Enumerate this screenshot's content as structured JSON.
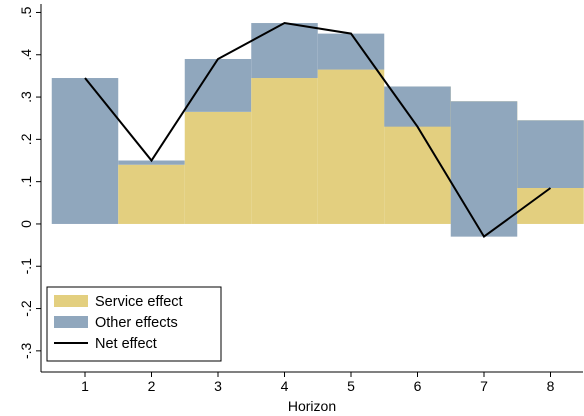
{
  "chart_data": {
    "type": "bar",
    "stacking": "stacked",
    "categories": [
      "1",
      "2",
      "3",
      "4",
      "5",
      "6",
      "7",
      "8"
    ],
    "x": [
      1,
      2,
      3,
      4,
      5,
      6,
      7,
      8
    ],
    "series": [
      {
        "name": "Service effect",
        "type": "bar",
        "color": "#e3cf7f",
        "values": [
          0.0,
          0.14,
          0.265,
          0.345,
          0.365,
          0.325,
          0.29,
          0.245
        ]
      },
      {
        "name": "Other effects",
        "type": "bar",
        "color": "#90a7bd",
        "values": [
          0.345,
          0.01,
          0.125,
          0.13,
          0.085,
          -0.095,
          -0.32,
          -0.16
        ]
      },
      {
        "name": "Net effect",
        "type": "line",
        "color": "#000000",
        "values": [
          0.345,
          0.15,
          0.39,
          0.475,
          0.45,
          0.23,
          -0.03,
          0.085
        ]
      }
    ],
    "xlabel": "Horizon",
    "ylabel": "",
    "ylim": [
      -0.35,
      0.52
    ],
    "yticks": [
      {
        "value": -0.3,
        "label": "-.3"
      },
      {
        "value": -0.2,
        "label": "-.2"
      },
      {
        "value": -0.1,
        "label": "-.1"
      },
      {
        "value": 0,
        "label": "0"
      },
      {
        "value": 0.1,
        "label": ".1"
      },
      {
        "value": 0.2,
        "label": ".2"
      },
      {
        "value": 0.3,
        "label": ".3"
      },
      {
        "value": 0.4,
        "label": ".4"
      },
      {
        "value": 0.5,
        "label": ".5"
      }
    ],
    "grid": false,
    "legend_position": "bottom-left"
  }
}
